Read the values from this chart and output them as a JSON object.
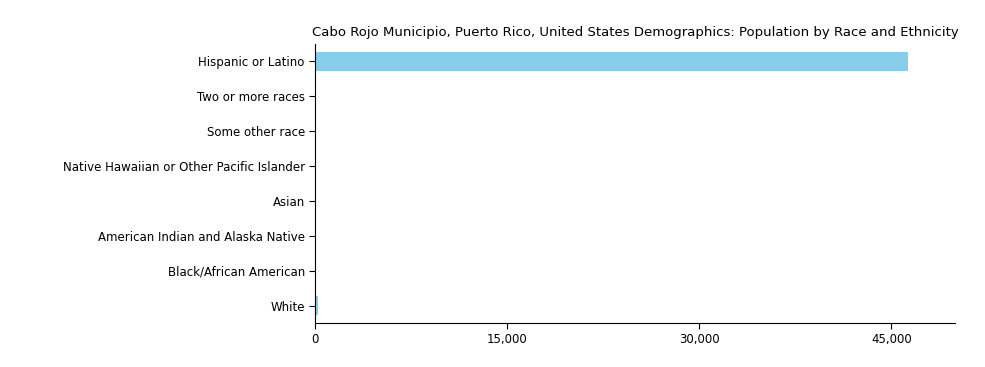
{
  "title": "Cabo Rojo Municipio, Puerto Rico, United States Demographics: Population by Race and Ethnicity",
  "categories": [
    "Hispanic or Latino",
    "Two or more races",
    "Some other race",
    "Native Hawaiian or Other Pacific Islander",
    "Asian",
    "American Indian and Alaska Native",
    "Black/African American",
    "White"
  ],
  "values": [
    46300,
    50,
    30,
    5,
    20,
    15,
    10,
    200
  ],
  "bar_color": "#87CEEB",
  "xlim": [
    0,
    50000
  ],
  "xticks": [
    0,
    15000,
    30000,
    45000
  ],
  "xtick_labels": [
    "0",
    "15,000",
    "30,000",
    "45,000"
  ],
  "background_color": "#ffffff",
  "title_fontsize": 9.5,
  "tick_fontsize": 8.5,
  "label_fontsize": 8.5,
  "bar_height": 0.55
}
